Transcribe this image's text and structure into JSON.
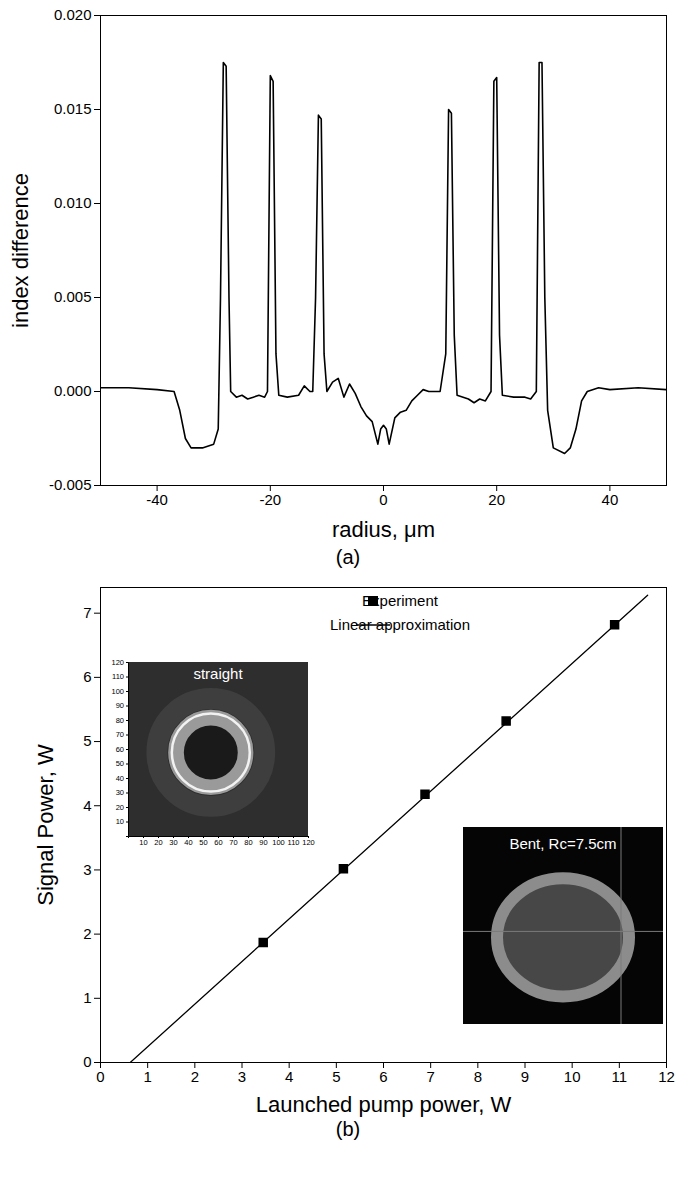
{
  "chart_data": [
    {
      "type": "line",
      "caption": "(a)",
      "x_label": "radius, μm",
      "y_label": "index difference",
      "color": "#000000",
      "x": [
        -50,
        -45,
        -40,
        -37,
        -36,
        -35,
        -34,
        -32,
        -30,
        -29.2,
        -28.8,
        -28.3,
        -27.8,
        -27.3,
        -27,
        -26,
        -25,
        -24,
        -23,
        -22,
        -21,
        -20.5,
        -20,
        -19.5,
        -19,
        -18.5,
        -17,
        -15,
        -14,
        -13,
        -12.5,
        -12,
        -11.5,
        -11,
        -10.5,
        -10,
        -9,
        -8,
        -7,
        -6,
        -5,
        -4,
        -3,
        -2,
        -1,
        -0.5,
        0,
        0.5,
        1,
        2,
        3,
        4,
        5,
        6,
        7,
        8,
        9,
        10,
        11,
        11.5,
        12,
        12.5,
        13,
        15,
        16,
        17,
        18,
        19,
        19.5,
        20,
        20.5,
        21,
        23,
        25,
        26,
        27,
        27.5,
        28,
        28.5,
        29,
        30,
        32,
        33,
        34,
        35,
        36,
        38,
        40,
        45,
        50
      ],
      "values": [
        0.0002,
        0.0002,
        0.0001,
        0.0,
        -0.001,
        -0.0025,
        -0.003,
        -0.003,
        -0.0028,
        -0.002,
        0.005,
        0.0175,
        0.0173,
        0.005,
        0.0,
        -0.0003,
        -0.0002,
        -0.0004,
        -0.0003,
        -0.0002,
        -0.0003,
        0.0,
        0.0168,
        0.0165,
        0.002,
        -0.0002,
        -0.0003,
        -0.0002,
        0.0003,
        0.0,
        0.0,
        0.005,
        0.0147,
        0.0145,
        0.002,
        0.0,
        0.0005,
        0.0007,
        -0.0003,
        0.0004,
        -0.0001,
        -0.0008,
        -0.0013,
        -0.0016,
        -0.0028,
        -0.002,
        -0.0018,
        -0.002,
        -0.0028,
        -0.0014,
        -0.0011,
        -0.001,
        -0.0005,
        -0.0002,
        0.0001,
        0.0,
        0.0,
        0.0,
        0.002,
        0.015,
        0.0148,
        0.003,
        -0.0002,
        -0.0004,
        -0.0006,
        -0.0004,
        -0.0005,
        0.0,
        0.0165,
        0.0167,
        0.003,
        -0.0002,
        -0.0003,
        -0.0003,
        -0.0004,
        0.0,
        0.0175,
        0.0175,
        0.005,
        -0.001,
        -0.003,
        -0.0033,
        -0.003,
        -0.002,
        -0.0005,
        0.0,
        0.0002,
        0.0001,
        0.0002,
        0.0001
      ],
      "xlim": [
        -50,
        50
      ],
      "xticks": [
        -40,
        -20,
        0,
        20,
        40
      ],
      "ylim": [
        -0.005,
        0.02
      ],
      "yticks": [
        -0.005,
        {
          "value": 0,
          "label": "0.000"
        },
        0.005,
        {
          "value": 0.01,
          "label": "0.010"
        },
        0.015,
        {
          "value": 0.02,
          "label": "0.020"
        }
      ]
    },
    {
      "type": "scatter",
      "caption": "(b)",
      "x_label": "Launched pump power, W",
      "y_label": "Signal Power, W",
      "series": [
        {
          "name": "Experiment",
          "type": "scatter",
          "marker": "square",
          "color": "#000000",
          "x": [
            3.45,
            5.15,
            6.88,
            8.6,
            10.9
          ],
          "values": [
            1.87,
            3.02,
            4.18,
            5.32,
            6.82
          ]
        },
        {
          "name": "Linear approximation",
          "type": "line",
          "line_style": "solid",
          "color": "#000000",
          "x": [
            0.63,
            11.6
          ],
          "values": [
            0,
            7.28
          ]
        }
      ],
      "xlim": [
        0,
        12
      ],
      "xticks": [
        0,
        1,
        2,
        3,
        4,
        5,
        6,
        7,
        8,
        9,
        10,
        11,
        12
      ],
      "ylim": [
        0,
        7.4
      ],
      "yticks": [
        0,
        1,
        2,
        3,
        4,
        5,
        6,
        7
      ],
      "legend": "top",
      "insets": [
        {
          "label": "straight",
          "xlim": [
            0,
            120
          ],
          "ylim": [
            0,
            120
          ],
          "xticks": [
            10,
            20,
            30,
            40,
            50,
            60,
            70,
            80,
            90,
            100,
            110,
            120
          ],
          "yticks": [
            10,
            20,
            30,
            40,
            50,
            60,
            70,
            80,
            90,
            100,
            110,
            120
          ]
        },
        {
          "label": "Bent, Rc=7.5cm"
        }
      ]
    }
  ]
}
